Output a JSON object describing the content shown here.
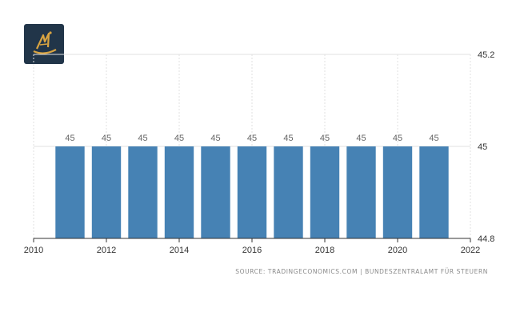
{
  "chart_data": {
    "type": "bar",
    "x": [
      2011,
      2012,
      2013,
      2014,
      2015,
      2016,
      2017,
      2018,
      2019,
      2020,
      2021
    ],
    "values": [
      45,
      45,
      45,
      45,
      45,
      45,
      45,
      45,
      45,
      45,
      45
    ],
    "data_labels": [
      "45",
      "45",
      "45",
      "45",
      "45",
      "45",
      "45",
      "45",
      "45",
      "45",
      "45"
    ],
    "xlim": [
      2010,
      2022
    ],
    "x_ticks": [
      "2010",
      "2012",
      "2014",
      "2016",
      "2018",
      "2020",
      "2022"
    ],
    "ylim": [
      44.8,
      45.2
    ],
    "y_ticks": [
      "45.2",
      "45",
      "44.8"
    ],
    "y_axis_side": "right",
    "grid": true,
    "bar_color": "#4682b4",
    "title": "",
    "xlabel": "",
    "ylabel": ""
  },
  "source": "SOURCE: TRADINGECONOMICS.COM | BUNDESZENTRALAMT FÜR STEUERN",
  "logo": {
    "icon": "tradingeconomics-logo-icon",
    "background": "#213549",
    "accent": "#d9a441"
  }
}
